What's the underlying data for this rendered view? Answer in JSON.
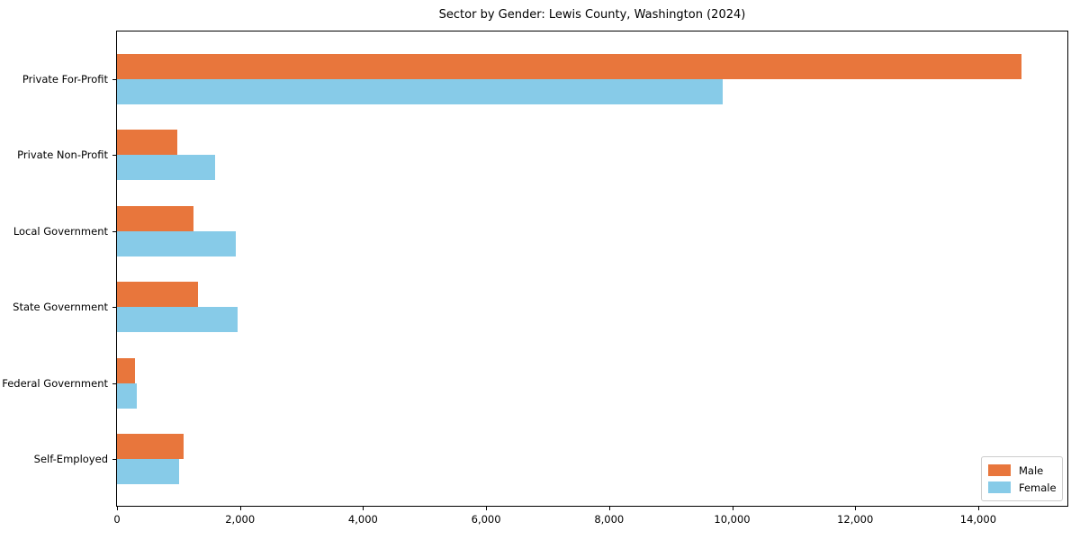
{
  "chart_data": {
    "type": "bar",
    "orientation": "horizontal",
    "title": "Sector by Gender: Lewis County, Washington (2024)",
    "categories": [
      "Private For-Profit",
      "Private Non-Profit",
      "Local Government",
      "State Government",
      "Federal Government",
      "Self-Employed"
    ],
    "series": [
      {
        "name": "Male",
        "color": "#e8763c",
        "values": [
          14700,
          980,
          1240,
          1320,
          290,
          1080
        ]
      },
      {
        "name": "Female",
        "color": "#87cbe8",
        "values": [
          9840,
          1590,
          1930,
          1960,
          325,
          1010
        ]
      }
    ],
    "xlabel": "",
    "ylabel": "",
    "xlim": [
      0,
      15450
    ],
    "xticks": {
      "values": [
        0,
        2000,
        4000,
        6000,
        8000,
        10000,
        12000,
        14000
      ],
      "labels": [
        "0",
        "2,000",
        "4,000",
        "6,000",
        "8,000",
        "10,000",
        "12,000",
        "14,000"
      ]
    },
    "grid": false,
    "legend": {
      "position": "lower right",
      "entries": [
        "Male",
        "Female"
      ]
    }
  },
  "colors": {
    "background": "#ffffff",
    "spine": "#000000",
    "text": "#000000",
    "legend_border": "#cccccc",
    "male": "#e8763c",
    "female": "#87cbe8"
  }
}
